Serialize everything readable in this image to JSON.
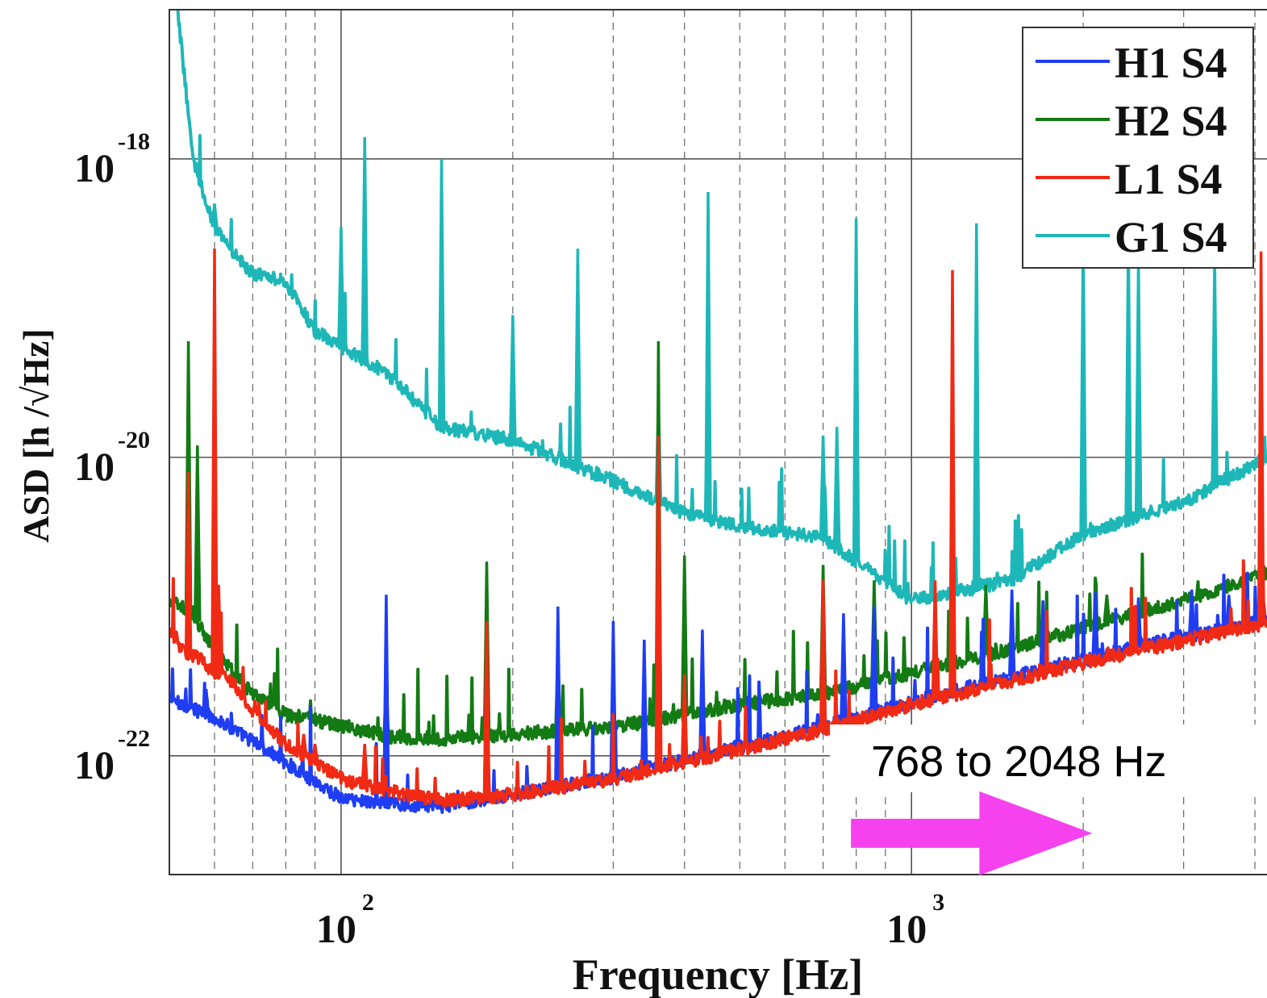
{
  "chart_data": {
    "type": "line",
    "title": "",
    "xlabel": "Frequency [Hz]",
    "ylabel": "ASD [h /√Hz]",
    "x_scale": "log",
    "y_scale": "log",
    "xlim": [
      50,
      4200
    ],
    "ylim": [
      1.6e-23,
      1e-17
    ],
    "grid": true,
    "legend_position": "top-right",
    "x_ticks": [
      {
        "value": 100,
        "base": "10",
        "exp": "2"
      },
      {
        "value": 1000,
        "base": "10",
        "exp": "3"
      }
    ],
    "y_ticks": [
      {
        "value": 1e-18,
        "base": "10",
        "exp": "-18"
      },
      {
        "value": 1e-20,
        "base": "10",
        "exp": "-20"
      },
      {
        "value": 1e-22,
        "base": "10",
        "exp": "-22"
      }
    ],
    "series": [
      {
        "name": "H1 S4",
        "color": "#1f3df2",
        "baseline": [
          [
            50,
            2.4e-22
          ],
          [
            60,
            1.8e-22
          ],
          [
            70,
            1.25e-22
          ],
          [
            80,
            9e-23
          ],
          [
            100,
            5.2e-23
          ],
          [
            120,
            4.8e-23
          ],
          [
            150,
            4.6e-23
          ],
          [
            200,
            5.5e-23
          ],
          [
            300,
            7.2e-23
          ],
          [
            500,
            1.15e-22
          ],
          [
            700,
            1.55e-22
          ],
          [
            1000,
            2.3e-22
          ],
          [
            1500,
            3.4e-22
          ],
          [
            2000,
            4.4e-22
          ],
          [
            3000,
            6.3e-22
          ],
          [
            4200,
            8.2e-22
          ]
        ],
        "lines": [
          [
            58,
            2.8e-22
          ],
          [
            120,
            1.2e-21
          ],
          [
            180,
            6e-22
          ],
          [
            240,
            1e-21
          ],
          [
            300,
            8e-22
          ],
          [
            340,
            6e-22
          ],
          [
            430,
            7e-22
          ],
          [
            760,
            9e-22
          ],
          [
            860,
            1e-21
          ],
          [
            1180,
            1.2e-21
          ],
          [
            1500,
            1.3e-21
          ],
          [
            1700,
            1.1e-21
          ],
          [
            2100,
            1.25e-21
          ],
          [
            2500,
            1.15e-21
          ],
          [
            3100,
            1.3e-21
          ],
          [
            3600,
            1.2e-21
          ]
        ]
      },
      {
        "name": "H2 S4",
        "color": "#137a14",
        "baseline": [
          [
            50,
            1.1e-21
          ],
          [
            55,
            9e-22
          ],
          [
            60,
            5e-22
          ],
          [
            70,
            2.6e-22
          ],
          [
            80,
            1.9e-22
          ],
          [
            100,
            1.6e-22
          ],
          [
            120,
            1.35e-22
          ],
          [
            150,
            1.3e-22
          ],
          [
            200,
            1.4e-22
          ],
          [
            300,
            1.55e-22
          ],
          [
            500,
            2.2e-22
          ],
          [
            700,
            2.6e-22
          ],
          [
            1000,
            3.6e-22
          ],
          [
            1500,
            5.2e-22
          ],
          [
            2000,
            7.2e-22
          ],
          [
            3000,
            1.1e-21
          ],
          [
            4200,
            1.7e-21
          ]
        ],
        "lines": [
          [
            54,
            6e-20
          ],
          [
            56,
            1.2e-20
          ],
          [
            60,
            8e-22
          ],
          [
            120,
            3e-22
          ],
          [
            180,
            2e-21
          ],
          [
            240,
            5e-22
          ],
          [
            360,
            6e-20
          ],
          [
            400,
            2.2e-21
          ],
          [
            700,
            1.9e-21
          ],
          [
            860,
            1.5e-21
          ],
          [
            1180,
            2.2e-21
          ],
          [
            1350,
            1.4e-21
          ],
          [
            2200,
            1.2e-21
          ],
          [
            4100,
            2.6e-21
          ]
        ]
      },
      {
        "name": "L1 S4",
        "color": "#f02a14",
        "baseline": [
          [
            50,
            6.5e-22
          ],
          [
            54,
            4.8e-22
          ],
          [
            57,
            4.5e-22
          ],
          [
            60,
            3.5e-22
          ],
          [
            62,
            3.8e-22
          ],
          [
            70,
            2e-22
          ],
          [
            80,
            1.2e-22
          ],
          [
            100,
            7e-23
          ],
          [
            120,
            5.8e-23
          ],
          [
            150,
            5e-23
          ],
          [
            200,
            5.5e-23
          ],
          [
            300,
            7e-23
          ],
          [
            500,
            1.1e-22
          ],
          [
            700,
            1.5e-22
          ],
          [
            1000,
            2.2e-22
          ],
          [
            1500,
            3.2e-22
          ],
          [
            2000,
            4.2e-22
          ],
          [
            3000,
            5.9e-22
          ],
          [
            4200,
            7.8e-22
          ]
        ],
        "lines": [
          [
            54,
            8e-21
          ],
          [
            60,
            2.5e-19
          ],
          [
            61,
            1.4e-21
          ],
          [
            86,
            1.4e-22
          ],
          [
            90,
            1.2e-22
          ],
          [
            110,
            1.2e-22
          ],
          [
            180,
            8e-22
          ],
          [
            180.5,
            1.2e-22
          ],
          [
            360,
            1.4e-20
          ],
          [
            360.5,
            1.1e-20
          ],
          [
            400,
            3.5e-22
          ],
          [
            700,
            1.5e-21
          ],
          [
            1100,
            1.5e-21
          ],
          [
            1180,
            1.8e-19
          ],
          [
            4100,
            2.4e-19
          ]
        ]
      },
      {
        "name": "G1 S4",
        "color": "#1eb7b8",
        "baseline": [
          [
            50,
            4.5e-17
          ],
          [
            52,
            8e-18
          ],
          [
            55,
            1e-18
          ],
          [
            60,
            3.5e-19
          ],
          [
            65,
            2.3e-19
          ],
          [
            70,
            1.7e-19
          ],
          [
            80,
            1.5e-19
          ],
          [
            90,
            7e-20
          ],
          [
            100,
            5.5e-20
          ],
          [
            120,
            3.7e-20
          ],
          [
            150,
            1.6e-20
          ],
          [
            200,
            1.3e-20
          ],
          [
            300,
            7e-21
          ],
          [
            400,
            4.2e-21
          ],
          [
            500,
            3.5e-21
          ],
          [
            700,
            2.9e-21
          ],
          [
            1000,
            1.1e-21
          ],
          [
            1500,
            1.5e-21
          ],
          [
            2000,
            3.1e-21
          ],
          [
            3000,
            5e-21
          ],
          [
            4200,
            1e-20
          ]
        ],
        "lines": [
          [
            60,
            5e-19
          ],
          [
            100,
            3.5e-19
          ],
          [
            110,
            1.4e-18
          ],
          [
            150,
            1e-18
          ],
          [
            200,
            9e-20
          ],
          [
            260,
            2.5e-19
          ],
          [
            360,
            2.5e-20
          ],
          [
            440,
            6e-19
          ],
          [
            700,
            1.4e-20
          ],
          [
            740,
            1.6e-20
          ],
          [
            800,
            4e-19
          ],
          [
            1300,
            3.7e-19
          ],
          [
            2000,
            3.5e-19
          ],
          [
            2400,
            3.4e-19
          ],
          [
            2500,
            2.2e-19
          ],
          [
            3400,
            2.3e-19
          ]
        ]
      }
    ],
    "annotation": {
      "text": "768 to 2048 Hz",
      "x_from": 768,
      "x_to": 2048,
      "y_level": 3.1e-23,
      "color": "#f542ee"
    }
  }
}
